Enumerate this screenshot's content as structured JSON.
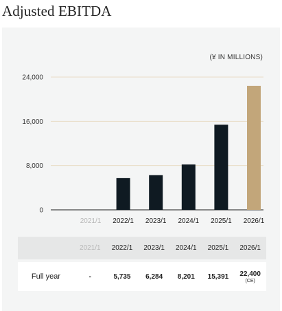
{
  "title": "Adjusted EBITDA",
  "unit": "(¥ IN MILLIONS)",
  "chart_data": {
    "type": "bar",
    "categories": [
      "2021/1",
      "2022/1",
      "2023/1",
      "2024/1",
      "2025/1",
      "2026/1"
    ],
    "values": [
      null,
      5735,
      6284,
      8201,
      15391,
      22400
    ],
    "ylim": [
      0,
      24000
    ],
    "yticks": [
      0,
      8000,
      16000,
      24000
    ],
    "ytick_labels": [
      "0",
      "8,000",
      "16,000",
      "24,000"
    ],
    "grid": true,
    "colors": {
      "actual": "#0f1a22",
      "estimate": "#c2a67a",
      "grid": "#e8dcc6",
      "muted_label": "#b8b8b8"
    }
  },
  "table": {
    "row_label": "Full year",
    "headers": [
      "2021/1",
      "2022/1",
      "2023/1",
      "2024/1",
      "2025/1",
      "2026/1"
    ],
    "cells": [
      "-",
      "5,735",
      "6,284",
      "8,201",
      "15,391",
      "22,400"
    ],
    "estimate_note": "(CE)"
  }
}
